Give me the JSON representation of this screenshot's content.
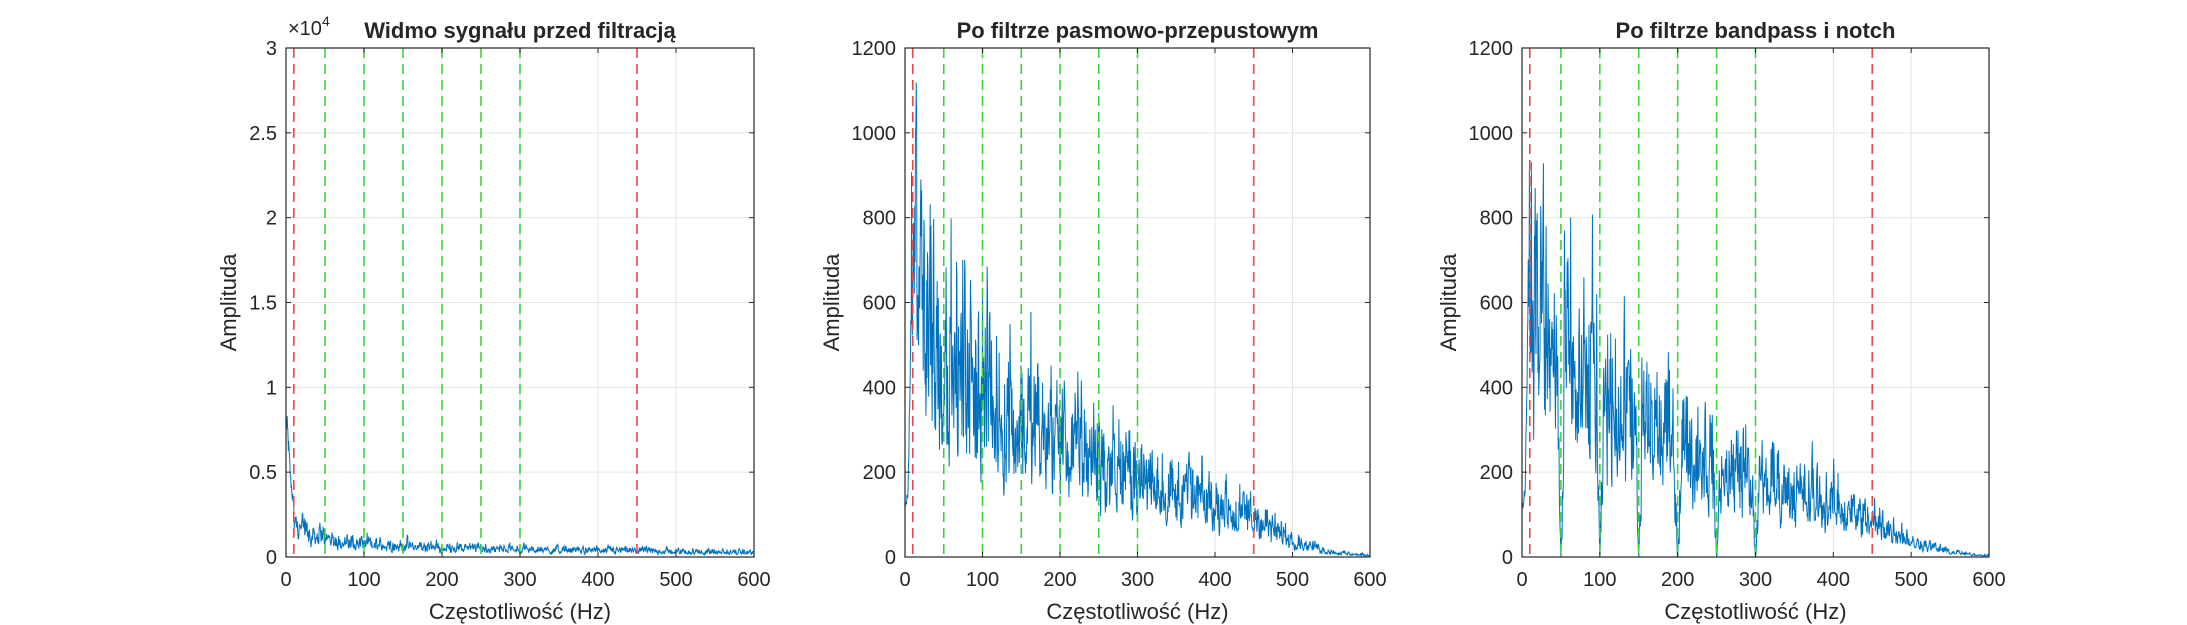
{
  "chart_data": [
    {
      "type": "line",
      "title": "Widmo sygnału przed filtracją",
      "xlabel": "Częstotliwość (Hz)",
      "ylabel": "Amplituda",
      "xlim": [
        0,
        600
      ],
      "ylim": [
        0,
        30000
      ],
      "xticks": [
        0,
        100,
        200,
        300,
        400,
        500,
        600
      ],
      "yticks": [
        0,
        5000,
        10000,
        15000,
        20000,
        25000,
        30000
      ],
      "ytick_labels": [
        "0",
        "0.5",
        "1",
        "1.5",
        "2",
        "2.5",
        "3"
      ],
      "y_exponent_label": "×10",
      "y_exponent_power": "4",
      "grid": true,
      "series": [
        {
          "color": "#0072BD",
          "x": [
            0,
            2,
            4,
            6,
            8,
            10,
            12,
            15,
            20,
            25,
            30,
            40,
            50,
            60,
            80,
            100,
            150,
            200,
            250,
            300,
            350,
            400,
            450,
            500,
            550,
            600
          ],
          "y": [
            8000,
            7400,
            6000,
            4500,
            3800,
            3200,
            2900,
            2600,
            2200,
            2000,
            1800,
            1500,
            1400,
            1200,
            1050,
            950,
            800,
            700,
            620,
            560,
            500,
            470,
            440,
            400,
            370,
            340
          ]
        }
      ],
      "vlines": [
        {
          "x": 10,
          "color": "#E8474C",
          "style": "dashed"
        },
        {
          "x": 50,
          "color": "#3FD13F",
          "style": "dashed"
        },
        {
          "x": 100,
          "color": "#3FD13F",
          "style": "dashed"
        },
        {
          "x": 150,
          "color": "#3FD13F",
          "style": "dashed"
        },
        {
          "x": 200,
          "color": "#3FD13F",
          "style": "dashed"
        },
        {
          "x": 250,
          "color": "#3FD13F",
          "style": "dashed"
        },
        {
          "x": 300,
          "color": "#3FD13F",
          "style": "dashed"
        },
        {
          "x": 450,
          "color": "#E8474C",
          "style": "dashed"
        }
      ]
    },
    {
      "type": "line",
      "title": "Po filtrze pasmowo-przepustowym",
      "xlabel": "Częstotliwość (Hz)",
      "ylabel": "Amplituda",
      "xlim": [
        0,
        600
      ],
      "ylim": [
        0,
        1200
      ],
      "xticks": [
        0,
        100,
        200,
        300,
        400,
        500,
        600
      ],
      "yticks": [
        0,
        200,
        400,
        600,
        800,
        1000,
        1200
      ],
      "ytick_labels": [
        "0",
        "200",
        "400",
        "600",
        "800",
        "1000",
        "1200"
      ],
      "grid": true,
      "series": [
        {
          "color": "#0072BD",
          "x": [
            0,
            4,
            8,
            10,
            12,
            14,
            16,
            20,
            30,
            40,
            50,
            75,
            100,
            125,
            150,
            175,
            200,
            225,
            250,
            275,
            300,
            325,
            350,
            375,
            400,
            425,
            450,
            475,
            500,
            525,
            550,
            575,
            600
          ],
          "y": [
            120,
            150,
            600,
            880,
            1020,
            900,
            820,
            760,
            680,
            630,
            590,
            520,
            480,
            440,
            400,
            360,
            330,
            300,
            270,
            250,
            230,
            210,
            190,
            170,
            150,
            130,
            110,
            80,
            50,
            30,
            15,
            8,
            5
          ]
        }
      ],
      "vlines": [
        {
          "x": 10,
          "color": "#E8474C",
          "style": "dashed"
        },
        {
          "x": 50,
          "color": "#3FD13F",
          "style": "dashed"
        },
        {
          "x": 100,
          "color": "#3FD13F",
          "style": "dashed"
        },
        {
          "x": 150,
          "color": "#3FD13F",
          "style": "dashed"
        },
        {
          "x": 200,
          "color": "#3FD13F",
          "style": "dashed"
        },
        {
          "x": 250,
          "color": "#3FD13F",
          "style": "dashed"
        },
        {
          "x": 300,
          "color": "#3FD13F",
          "style": "dashed"
        },
        {
          "x": 450,
          "color": "#E8474C",
          "style": "dashed"
        }
      ]
    },
    {
      "type": "line",
      "title": "Po filtrze bandpass i notch",
      "xlabel": "Częstotliwość (Hz)",
      "ylabel": "Amplituda",
      "xlim": [
        0,
        600
      ],
      "ylim": [
        0,
        1200
      ],
      "xticks": [
        0,
        100,
        200,
        300,
        400,
        500,
        600
      ],
      "yticks": [
        0,
        200,
        400,
        600,
        800,
        1000,
        1200
      ],
      "ytick_labels": [
        "0",
        "200",
        "400",
        "600",
        "800",
        "1000",
        "1200"
      ],
      "grid": true,
      "series": [
        {
          "color": "#0072BD",
          "x": [
            0,
            4,
            8,
            10,
            12,
            14,
            16,
            20,
            30,
            40,
            50,
            75,
            100,
            125,
            150,
            175,
            200,
            225,
            250,
            275,
            300,
            325,
            350,
            375,
            400,
            425,
            450,
            475,
            500,
            525,
            550,
            575,
            600
          ],
          "y": [
            120,
            150,
            600,
            880,
            1020,
            900,
            820,
            760,
            680,
            630,
            590,
            520,
            480,
            440,
            400,
            360,
            330,
            300,
            270,
            250,
            230,
            210,
            190,
            170,
            150,
            130,
            110,
            80,
            50,
            30,
            15,
            8,
            5
          ]
        }
      ],
      "notches": [
        50,
        100,
        150,
        200,
        250,
        300
      ],
      "vlines": [
        {
          "x": 10,
          "color": "#E8474C",
          "style": "dashed"
        },
        {
          "x": 50,
          "color": "#3FD13F",
          "style": "dashed"
        },
        {
          "x": 100,
          "color": "#3FD13F",
          "style": "dashed"
        },
        {
          "x": 150,
          "color": "#3FD13F",
          "style": "dashed"
        },
        {
          "x": 200,
          "color": "#3FD13F",
          "style": "dashed"
        },
        {
          "x": 250,
          "color": "#3FD13F",
          "style": "dashed"
        },
        {
          "x": 300,
          "color": "#3FD13F",
          "style": "dashed"
        },
        {
          "x": 450,
          "color": "#E8474C",
          "style": "dashed"
        }
      ]
    }
  ]
}
